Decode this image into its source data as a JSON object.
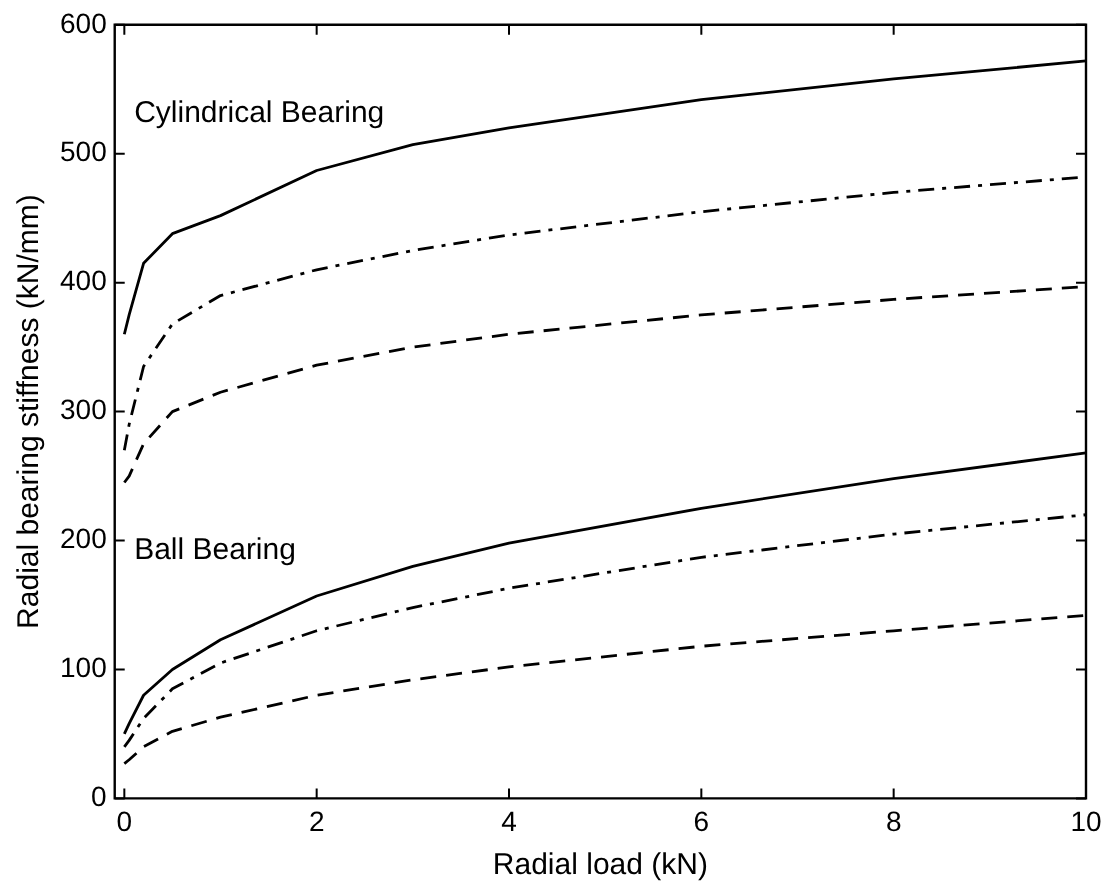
{
  "chart_data": {
    "type": "line",
    "xlabel": "Radial load (kN)",
    "ylabel": "Radial bearing stiffness (kN/mm)",
    "xlim": [
      -0.1,
      10
    ],
    "xticks": [
      0,
      2,
      4,
      6,
      8,
      10
    ],
    "ylim": [
      0,
      600
    ],
    "yticks": [
      0,
      100,
      200,
      300,
      400,
      500,
      600
    ],
    "grid": false,
    "legend": false,
    "marker": "none",
    "x": [
      0,
      0.05,
      0.2,
      0.5,
      1,
      2,
      3,
      4,
      6,
      8,
      10
    ],
    "series": [
      {
        "color": "#000000",
        "line_style": "solid",
        "values": [
          360,
          375,
          415,
          438,
          452,
          487,
          507,
          520,
          542,
          558,
          572
        ]
      },
      {
        "color": "#000000",
        "line_style": "dashdot",
        "values": [
          270,
          290,
          335,
          368,
          390,
          410,
          425,
          437,
          455,
          470,
          482
        ]
      },
      {
        "color": "#000000",
        "line_style": "dashed",
        "values": [
          245,
          250,
          275,
          300,
          315,
          336,
          350,
          360,
          375,
          387,
          397
        ]
      },
      {
        "color": "#000000",
        "line_style": "solid",
        "values": [
          50,
          58,
          80,
          100,
          123,
          157,
          180,
          198,
          225,
          248,
          268
        ]
      },
      {
        "color": "#000000",
        "line_style": "dashdot",
        "values": [
          40,
          45,
          62,
          85,
          105,
          130,
          148,
          163,
          187,
          205,
          220
        ]
      },
      {
        "color": "#000000",
        "line_style": "dashed",
        "values": [
          27,
          30,
          40,
          52,
          63,
          80,
          92,
          102,
          118,
          130,
          142
        ]
      }
    ],
    "annotations": [
      "Cylindrical Bearing",
      "Ball Bearing"
    ]
  }
}
